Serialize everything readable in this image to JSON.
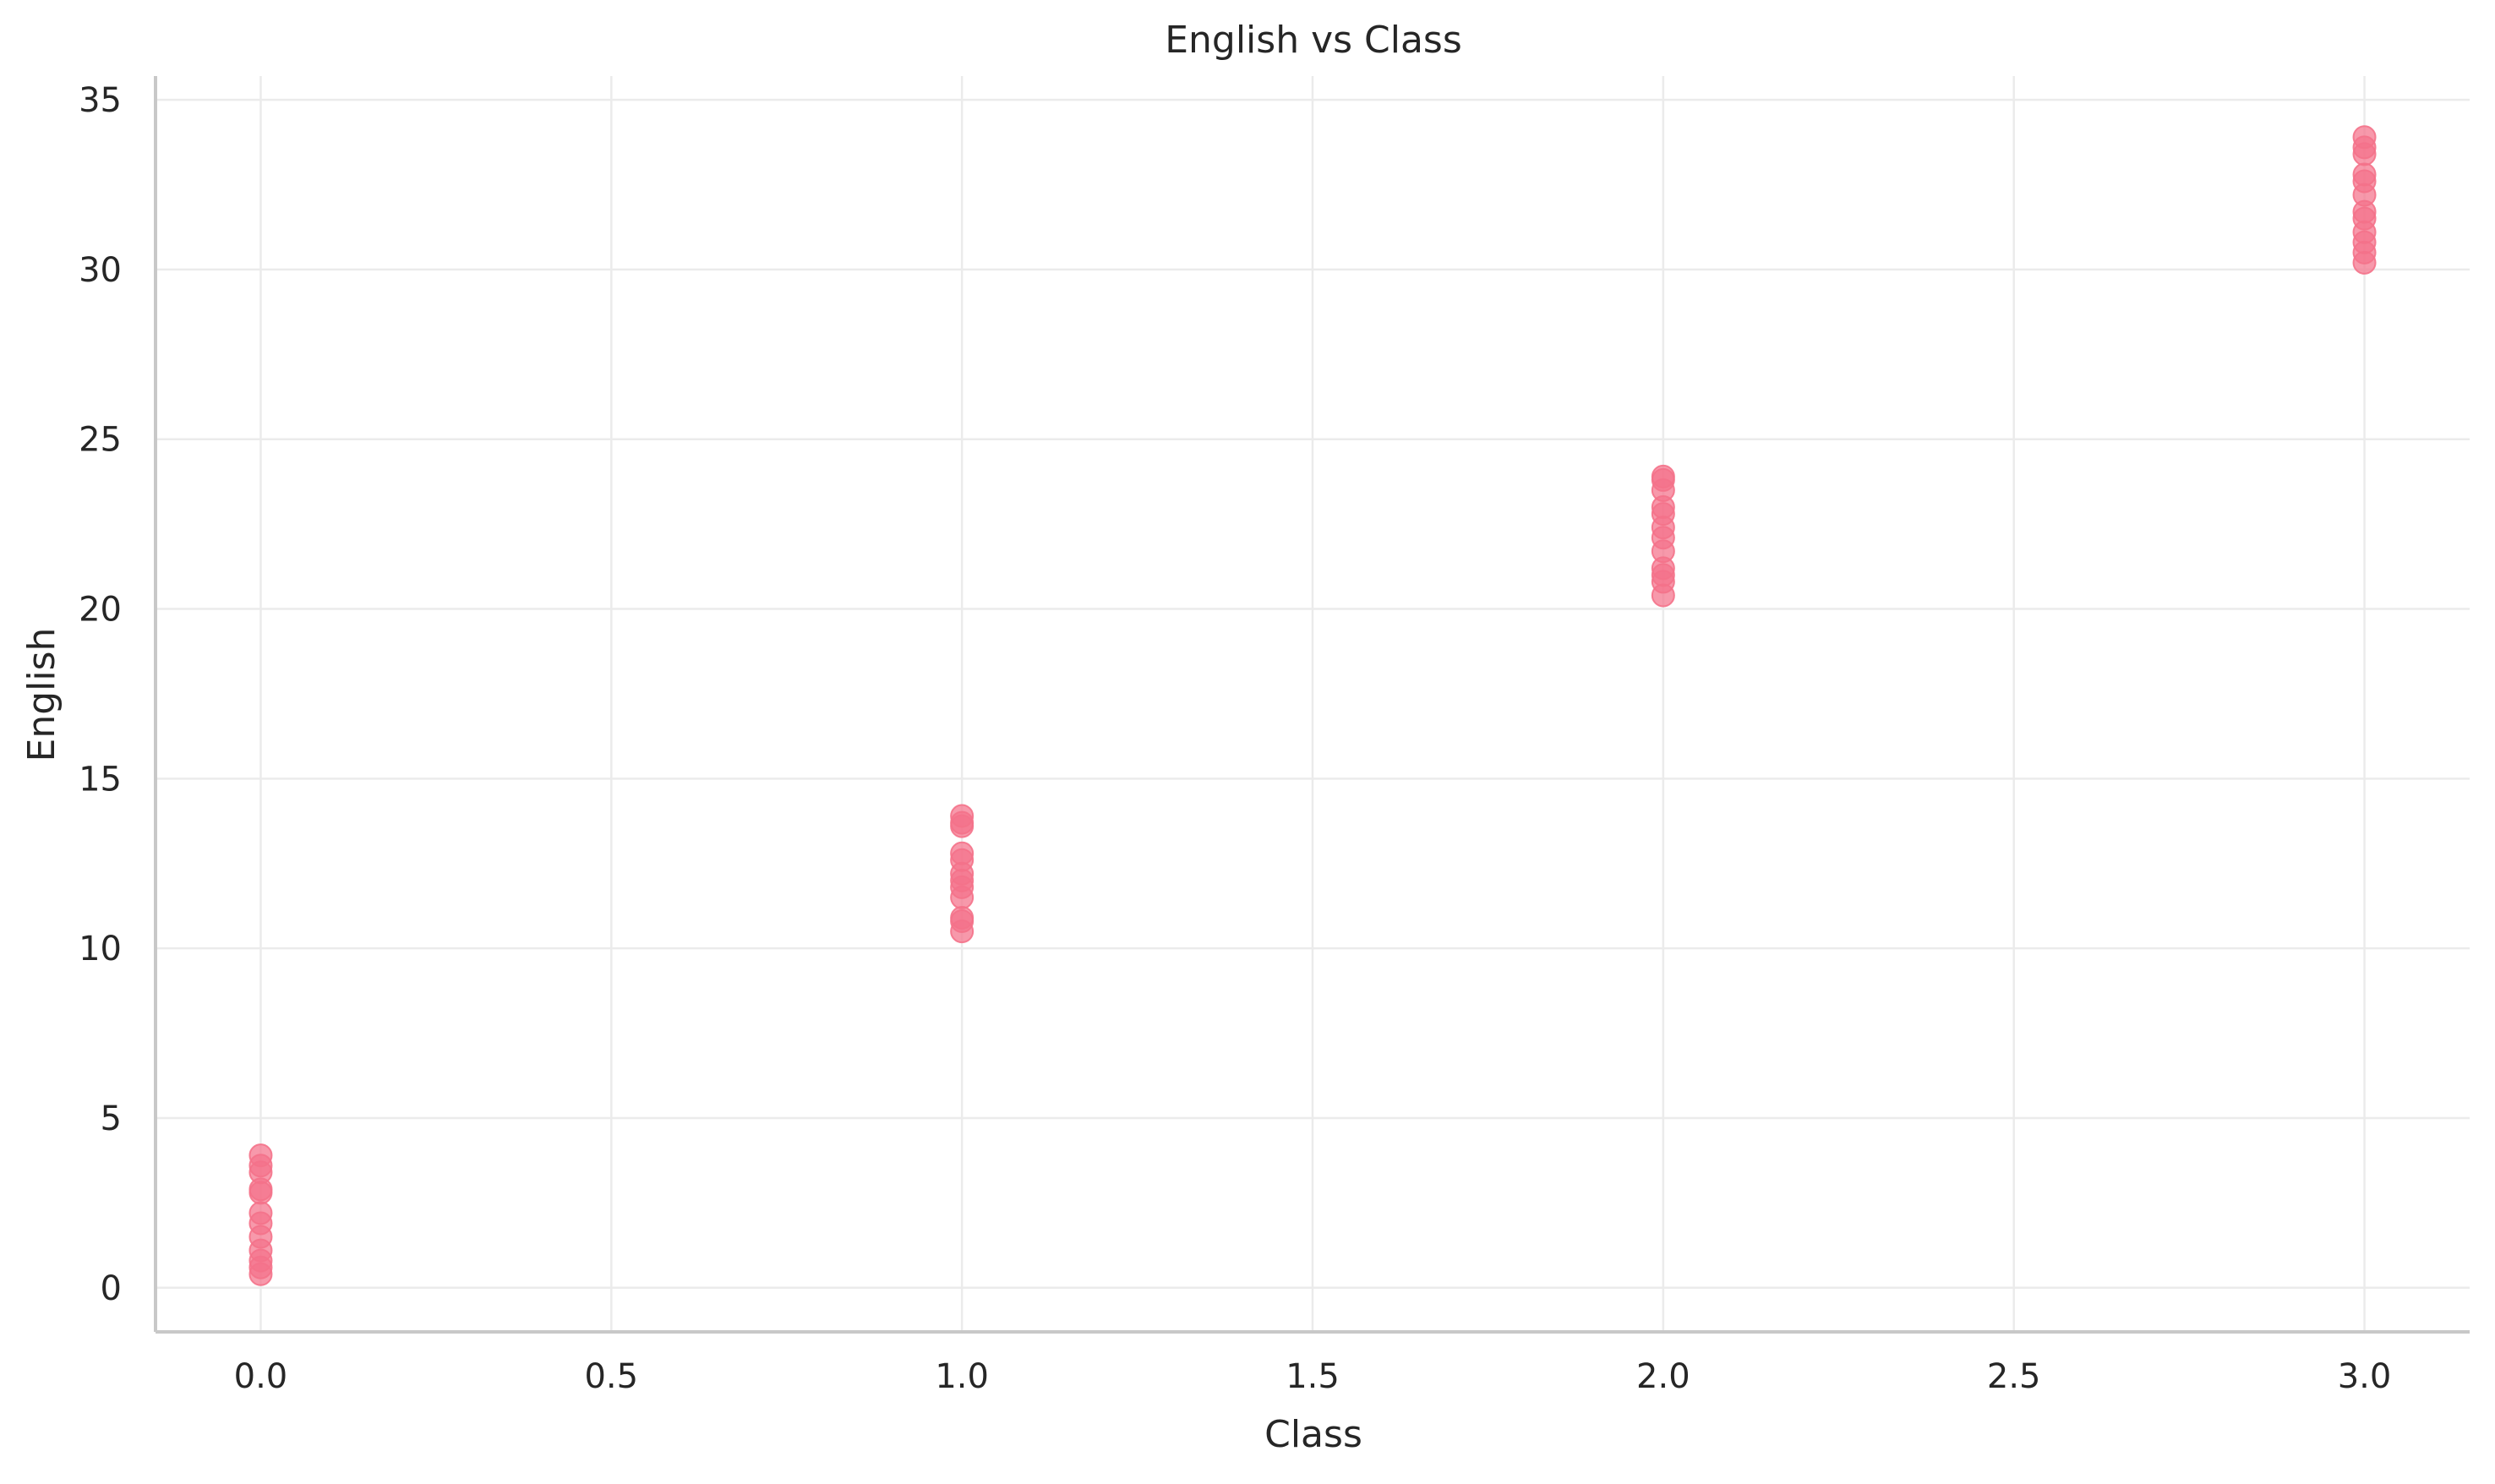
{
  "chart_data": {
    "type": "scatter",
    "title": "English vs Class",
    "xlabel": "Class",
    "ylabel": "English",
    "xlim": [
      -0.15,
      3.15
    ],
    "ylim": [
      -1.3,
      35.7
    ],
    "xticks": [
      0.0,
      0.5,
      1.0,
      1.5,
      2.0,
      2.5,
      3.0
    ],
    "xtick_labels": [
      "0.0",
      "0.5",
      "1.0",
      "1.5",
      "2.0",
      "2.5",
      "3.0"
    ],
    "yticks": [
      0,
      5,
      10,
      15,
      20,
      25,
      30,
      35
    ],
    "ytick_labels": [
      "0",
      "5",
      "10",
      "15",
      "20",
      "25",
      "30",
      "35"
    ],
    "grid": true,
    "legend": "none",
    "colors": {
      "marker": "#f4728a",
      "grid": "#ebebeb",
      "spine": "#c8c8c8",
      "text": "#262626"
    },
    "series": [
      {
        "points": [
          {
            "x": 0,
            "y": 0.4
          },
          {
            "x": 0,
            "y": 0.6
          },
          {
            "x": 0,
            "y": 0.8
          },
          {
            "x": 0,
            "y": 1.1
          },
          {
            "x": 0,
            "y": 1.5
          },
          {
            "x": 0,
            "y": 1.9
          },
          {
            "x": 0,
            "y": 2.2
          },
          {
            "x": 0,
            "y": 2.8
          },
          {
            "x": 0,
            "y": 2.9
          },
          {
            "x": 0,
            "y": 3.4
          },
          {
            "x": 0,
            "y": 3.6
          },
          {
            "x": 0,
            "y": 3.9
          },
          {
            "x": 1,
            "y": 10.5
          },
          {
            "x": 1,
            "y": 10.8
          },
          {
            "x": 1,
            "y": 10.9
          },
          {
            "x": 1,
            "y": 11.5
          },
          {
            "x": 1,
            "y": 11.8
          },
          {
            "x": 1,
            "y": 12.0
          },
          {
            "x": 1,
            "y": 12.2
          },
          {
            "x": 1,
            "y": 12.6
          },
          {
            "x": 1,
            "y": 12.8
          },
          {
            "x": 1,
            "y": 13.6
          },
          {
            "x": 1,
            "y": 13.7
          },
          {
            "x": 1,
            "y": 13.9
          },
          {
            "x": 2,
            "y": 20.4
          },
          {
            "x": 2,
            "y": 20.8
          },
          {
            "x": 2,
            "y": 21.0
          },
          {
            "x": 2,
            "y": 21.2
          },
          {
            "x": 2,
            "y": 21.7
          },
          {
            "x": 2,
            "y": 22.1
          },
          {
            "x": 2,
            "y": 22.4
          },
          {
            "x": 2,
            "y": 22.8
          },
          {
            "x": 2,
            "y": 23.0
          },
          {
            "x": 2,
            "y": 23.5
          },
          {
            "x": 2,
            "y": 23.8
          },
          {
            "x": 2,
            "y": 23.9
          },
          {
            "x": 3,
            "y": 30.2
          },
          {
            "x": 3,
            "y": 30.5
          },
          {
            "x": 3,
            "y": 30.8
          },
          {
            "x": 3,
            "y": 31.1
          },
          {
            "x": 3,
            "y": 31.5
          },
          {
            "x": 3,
            "y": 31.7
          },
          {
            "x": 3,
            "y": 32.2
          },
          {
            "x": 3,
            "y": 32.6
          },
          {
            "x": 3,
            "y": 32.8
          },
          {
            "x": 3,
            "y": 33.4
          },
          {
            "x": 3,
            "y": 33.6
          },
          {
            "x": 3,
            "y": 33.9
          }
        ]
      }
    ]
  }
}
